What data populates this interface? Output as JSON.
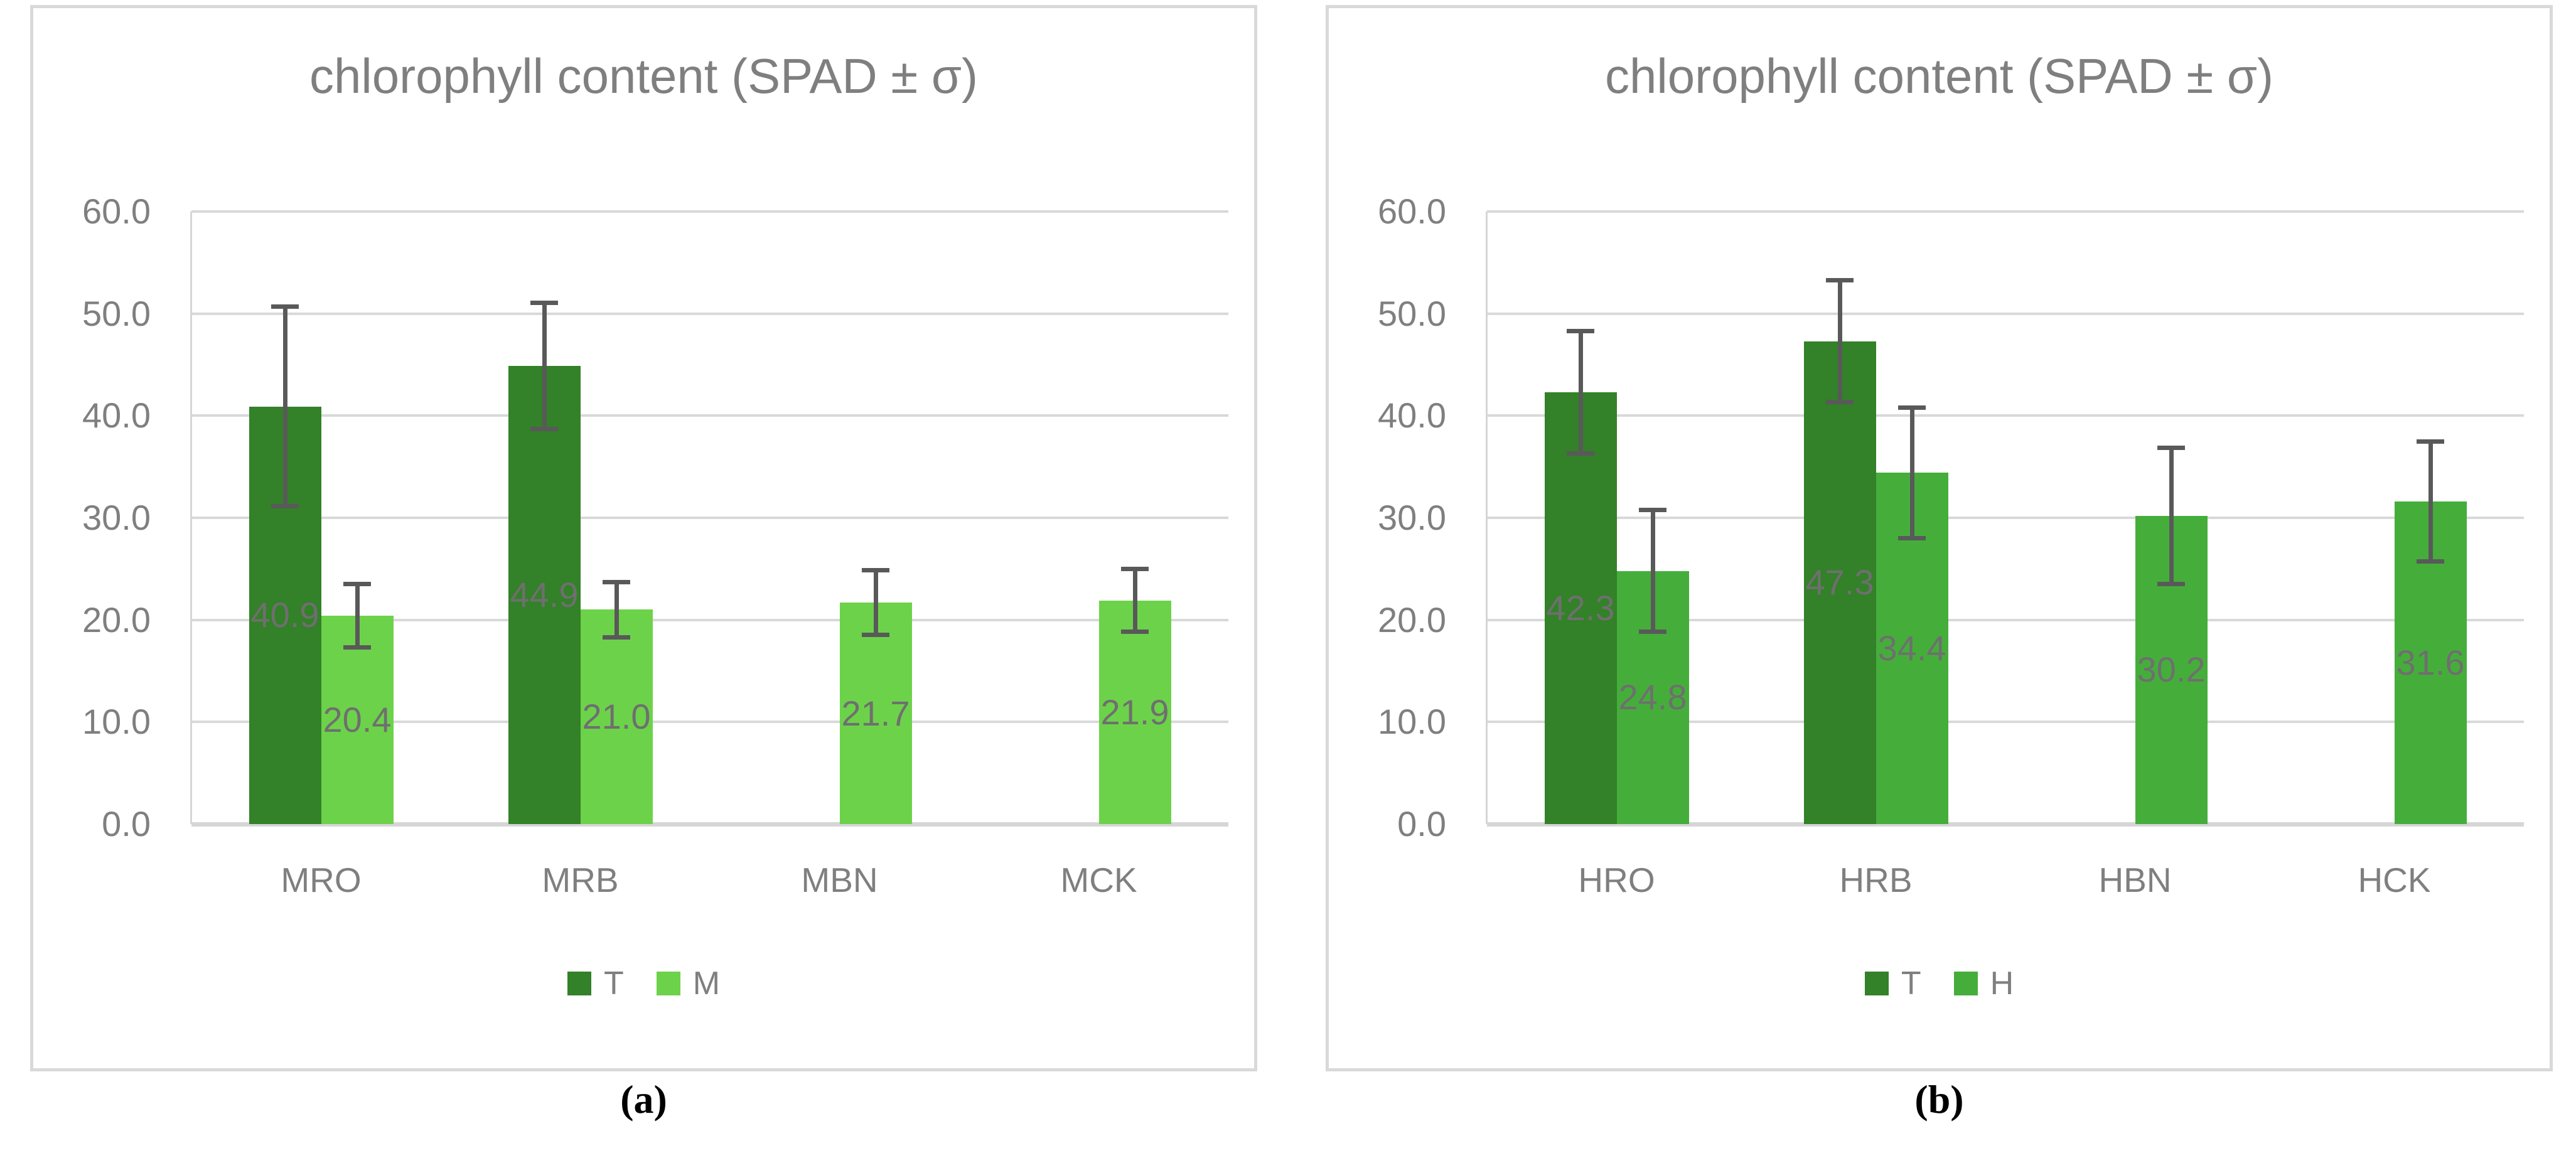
{
  "figure": {
    "background": "#ffffff",
    "captions": {
      "a": "(a)",
      "b": "(b)"
    }
  },
  "style": {
    "title_color": "#7F7F7F",
    "tick_color": "#7F7F7F",
    "data_label_color": "#6F6F6F",
    "grid_color": "#D9D9D9",
    "axis_color": "#D6D6D6",
    "error_bar_color": "#595959",
    "panel_border_color": "#D9D9D9",
    "dark_green": "#338128",
    "light_green": "#6CD24A",
    "medium_green": "#45AE3B"
  },
  "chart_data": [
    {
      "id": "a",
      "type": "bar",
      "title": "chlorophyll content (SPAD ± σ)",
      "caption": "(a)",
      "categories": [
        "MRO",
        "MRB",
        "MBN",
        "MCK"
      ],
      "series": [
        {
          "name": "T",
          "color": "#338128",
          "values": [
            40.9,
            44.9,
            null,
            null
          ],
          "errors": [
            10.0,
            6.4,
            null,
            null
          ]
        },
        {
          "name": "M",
          "color": "#6CD24A",
          "values": [
            20.4,
            21.0,
            21.7,
            21.9
          ],
          "errors": [
            3.3,
            2.9,
            3.4,
            3.3
          ]
        }
      ],
      "ylim": [
        0,
        60
      ],
      "ytick_step": 10,
      "ytick_decimals": 1,
      "grid": true,
      "legend_position": "bottom",
      "data_label_position": "inside-center"
    },
    {
      "id": "b",
      "type": "bar",
      "title": "chlorophyll content (SPAD ± σ)",
      "caption": "(b)",
      "categories": [
        "HRO",
        "HRB",
        "HBN",
        "HCK"
      ],
      "series": [
        {
          "name": "T",
          "color": "#338128",
          "values": [
            42.3,
            47.3,
            null,
            null
          ],
          "errors": [
            6.2,
            6.2,
            null,
            null
          ]
        },
        {
          "name": "H",
          "color": "#45AE3B",
          "values": [
            24.8,
            34.4,
            30.2,
            31.6
          ],
          "errors": [
            6.2,
            6.6,
            6.9,
            6.1
          ]
        }
      ],
      "ylim": [
        0,
        60
      ],
      "ytick_step": 10,
      "ytick_decimals": 1,
      "grid": true,
      "legend_position": "bottom",
      "data_label_position": "inside-center"
    }
  ]
}
